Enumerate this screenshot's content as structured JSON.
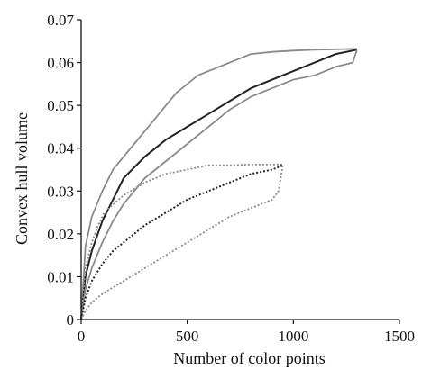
{
  "chart_data": {
    "type": "line",
    "xlabel": "Number of color points",
    "ylabel": "Convex hull volume",
    "xlim": [
      0,
      1500
    ],
    "ylim": [
      0,
      0.07
    ],
    "x_ticks": [
      "0",
      "500",
      "1000",
      "1500"
    ],
    "y_ticks": [
      "0",
      "0.01",
      "0.02",
      "0.03",
      "0.04",
      "0.05",
      "0.06",
      "0.07"
    ],
    "grid": false,
    "legend": "none",
    "series": [
      {
        "style": "solid",
        "color": "#8a8a8a",
        "role": "upper-bound",
        "points": [
          [
            0,
            0
          ],
          [
            20,
            0.017
          ],
          [
            50,
            0.024
          ],
          [
            100,
            0.03
          ],
          [
            150,
            0.035
          ],
          [
            200,
            0.038
          ],
          [
            250,
            0.041
          ],
          [
            300,
            0.044
          ],
          [
            350,
            0.047
          ],
          [
            400,
            0.05
          ],
          [
            450,
            0.053
          ],
          [
            500,
            0.055
          ],
          [
            550,
            0.057
          ],
          [
            600,
            0.058
          ],
          [
            650,
            0.059
          ],
          [
            700,
            0.06
          ],
          [
            750,
            0.061
          ],
          [
            800,
            0.062
          ],
          [
            900,
            0.0625
          ],
          [
            1000,
            0.0628
          ],
          [
            1100,
            0.063
          ],
          [
            1200,
            0.0631
          ],
          [
            1300,
            0.0632
          ]
        ]
      },
      {
        "style": "solid",
        "color": "#222222",
        "role": "mean",
        "points": [
          [
            0,
            0
          ],
          [
            20,
            0.01
          ],
          [
            50,
            0.016
          ],
          [
            100,
            0.023
          ],
          [
            150,
            0.028
          ],
          [
            200,
            0.033
          ],
          [
            300,
            0.038
          ],
          [
            400,
            0.042
          ],
          [
            500,
            0.045
          ],
          [
            600,
            0.048
          ],
          [
            700,
            0.051
          ],
          [
            800,
            0.054
          ],
          [
            900,
            0.056
          ],
          [
            1000,
            0.058
          ],
          [
            1100,
            0.06
          ],
          [
            1200,
            0.062
          ],
          [
            1300,
            0.063
          ]
        ]
      },
      {
        "style": "solid",
        "color": "#8a8a8a",
        "role": "lower-bound",
        "points": [
          [
            0,
            0
          ],
          [
            20,
            0.007
          ],
          [
            50,
            0.012
          ],
          [
            100,
            0.018
          ],
          [
            150,
            0.023
          ],
          [
            200,
            0.027
          ],
          [
            300,
            0.033
          ],
          [
            400,
            0.037
          ],
          [
            500,
            0.041
          ],
          [
            600,
            0.045
          ],
          [
            700,
            0.049
          ],
          [
            800,
            0.052
          ],
          [
            900,
            0.054
          ],
          [
            1000,
            0.056
          ],
          [
            1100,
            0.057
          ],
          [
            1200,
            0.059
          ],
          [
            1280,
            0.06
          ],
          [
            1300,
            0.063
          ]
        ]
      },
      {
        "style": "dotted",
        "color": "#8a8a8a",
        "role": "upper-bound",
        "points": [
          [
            0,
            0
          ],
          [
            20,
            0.012
          ],
          [
            50,
            0.018
          ],
          [
            80,
            0.022
          ],
          [
            110,
            0.025
          ],
          [
            130,
            0.026
          ],
          [
            200,
            0.029
          ],
          [
            300,
            0.032
          ],
          [
            400,
            0.034
          ],
          [
            500,
            0.035
          ],
          [
            600,
            0.036
          ],
          [
            700,
            0.036
          ],
          [
            800,
            0.0362
          ],
          [
            900,
            0.0362
          ],
          [
            950,
            0.0362
          ]
        ]
      },
      {
        "style": "dotted",
        "color": "#222222",
        "role": "mean",
        "points": [
          [
            0,
            0
          ],
          [
            20,
            0.005
          ],
          [
            50,
            0.009
          ],
          [
            100,
            0.013
          ],
          [
            150,
            0.016
          ],
          [
            200,
            0.018
          ],
          [
            300,
            0.022
          ],
          [
            400,
            0.025
          ],
          [
            500,
            0.028
          ],
          [
            600,
            0.03
          ],
          [
            700,
            0.032
          ],
          [
            800,
            0.034
          ],
          [
            900,
            0.035
          ],
          [
            950,
            0.036
          ]
        ]
      },
      {
        "style": "dotted",
        "color": "#8a8a8a",
        "role": "lower-bound",
        "points": [
          [
            0,
            0
          ],
          [
            20,
            0.002
          ],
          [
            50,
            0.004
          ],
          [
            100,
            0.006
          ],
          [
            200,
            0.009
          ],
          [
            300,
            0.012
          ],
          [
            400,
            0.015
          ],
          [
            500,
            0.018
          ],
          [
            600,
            0.021
          ],
          [
            700,
            0.024
          ],
          [
            800,
            0.026
          ],
          [
            900,
            0.028
          ],
          [
            930,
            0.03
          ],
          [
            950,
            0.036
          ]
        ]
      }
    ]
  }
}
